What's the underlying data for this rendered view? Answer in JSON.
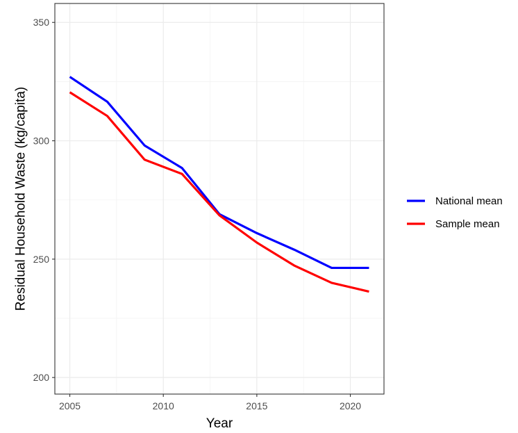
{
  "chart_data": {
    "type": "line",
    "title": "",
    "xlabel": "Year",
    "ylabel": "Residual Household Waste (kg/capita)",
    "xlim": [
      2004.2,
      2021.8
    ],
    "ylim": [
      193,
      358
    ],
    "x_ticks": [
      2005,
      2010,
      2015,
      2020
    ],
    "y_ticks": [
      200,
      250,
      300,
      350
    ],
    "grid": true,
    "legend_position": "right",
    "series": [
      {
        "name": "National mean",
        "color": "#0000ff",
        "x": [
          2005,
          2007,
          2009,
          2011,
          2013,
          2015,
          2017,
          2019,
          2021
        ],
        "y": [
          327,
          316.5,
          298,
          288.5,
          269,
          261,
          254,
          246.3,
          246.3
        ]
      },
      {
        "name": "Sample mean",
        "color": "#ff0000",
        "x": [
          2005,
          2007,
          2009,
          2011,
          2013,
          2015,
          2017,
          2019,
          2021
        ],
        "y": [
          320.5,
          310.5,
          292,
          286,
          268.5,
          257,
          247.3,
          240,
          236.3
        ]
      }
    ]
  }
}
